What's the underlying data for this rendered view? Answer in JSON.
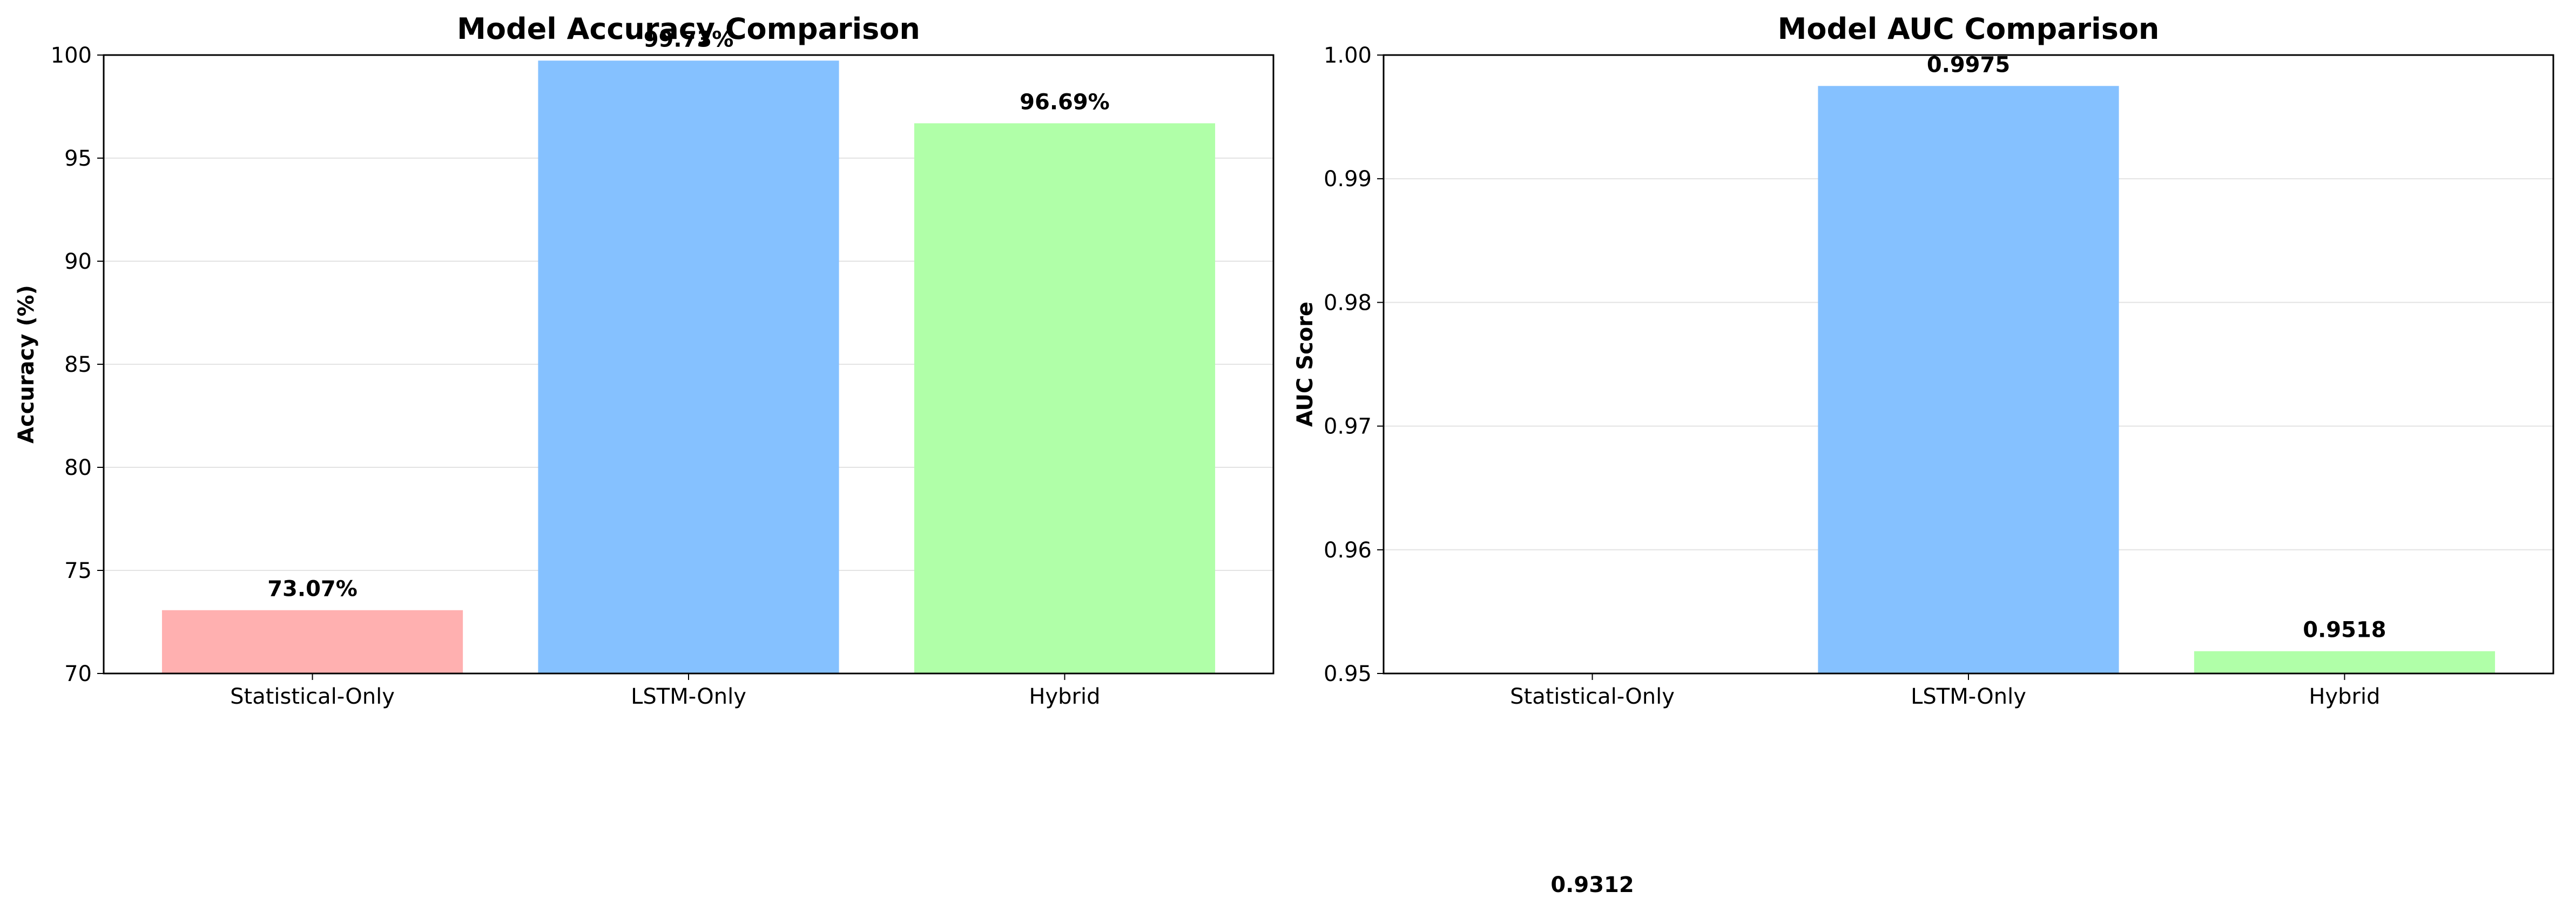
{
  "chart_data": [
    {
      "type": "bar",
      "title": "Model Accuracy Comparison",
      "xlabel": "",
      "ylabel": "Accuracy (%)",
      "categories": [
        "Statistical-Only",
        "LSTM-Only",
        "Hybrid"
      ],
      "values": [
        73.07,
        99.73,
        96.69
      ],
      "value_labels": [
        "73.07%",
        "99.73%",
        "96.69%"
      ],
      "ylim": [
        70,
        100
      ],
      "yticks": [
        70,
        75,
        80,
        85,
        90,
        95,
        100
      ],
      "ytick_labels": [
        "70",
        "75",
        "80",
        "85",
        "90",
        "95",
        "100"
      ],
      "colors": [
        "#ffb0b0",
        "#85c1ff",
        "#b0ffa8"
      ],
      "grid": "y"
    },
    {
      "type": "bar",
      "title": "Model AUC Comparison",
      "xlabel": "",
      "ylabel": "AUC Score",
      "categories": [
        "Statistical-Only",
        "LSTM-Only",
        "Hybrid"
      ],
      "values": [
        0.9312,
        0.9975,
        0.9518
      ],
      "value_labels": [
        "0.9312",
        "0.9975",
        "0.9518"
      ],
      "ylim": [
        0.95,
        1.0
      ],
      "yticks": [
        0.95,
        0.96,
        0.97,
        0.98,
        0.99,
        1.0
      ],
      "ytick_labels": [
        "0.95",
        "0.96",
        "0.97",
        "0.98",
        "0.99",
        "1.00"
      ],
      "colors": [
        "#ffb0b0",
        "#85c1ff",
        "#b0ffa8"
      ],
      "grid": "y"
    }
  ]
}
